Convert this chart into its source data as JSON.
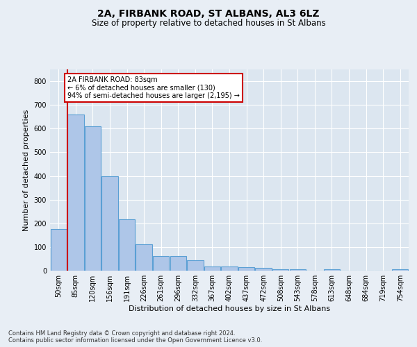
{
  "title1": "2A, FIRBANK ROAD, ST ALBANS, AL3 6LZ",
  "title2": "Size of property relative to detached houses in St Albans",
  "xlabel": "Distribution of detached houses by size in St Albans",
  "ylabel": "Number of detached properties",
  "bar_labels": [
    "50sqm",
    "85sqm",
    "120sqm",
    "156sqm",
    "191sqm",
    "226sqm",
    "261sqm",
    "296sqm",
    "332sqm",
    "367sqm",
    "402sqm",
    "437sqm",
    "472sqm",
    "508sqm",
    "543sqm",
    "578sqm",
    "613sqm",
    "648sqm",
    "684sqm",
    "719sqm",
    "754sqm"
  ],
  "bar_values": [
    175,
    660,
    610,
    400,
    218,
    110,
    63,
    63,
    44,
    17,
    17,
    15,
    13,
    7,
    7,
    0,
    7,
    0,
    0,
    0,
    7
  ],
  "bar_color": "#aec6e8",
  "bar_edge_color": "#5a9fd4",
  "annotation_box_text": "2A FIRBANK ROAD: 83sqm\n← 6% of detached houses are smaller (130)\n94% of semi-detached houses are larger (2,195) →",
  "annotation_box_color": "#ffffff",
  "annotation_box_edge_color": "#cc0000",
  "red_line_color": "#cc0000",
  "ylim": [
    0,
    850
  ],
  "yticks": [
    0,
    100,
    200,
    300,
    400,
    500,
    600,
    700,
    800
  ],
  "footer_text": "Contains HM Land Registry data © Crown copyright and database right 2024.\nContains public sector information licensed under the Open Government Licence v3.0.",
  "bg_color": "#e8eef5",
  "plot_bg_color": "#dce6f0",
  "title1_fontsize": 10,
  "title2_fontsize": 8.5,
  "ylabel_fontsize": 8,
  "xlabel_fontsize": 8,
  "tick_fontsize": 7,
  "footer_fontsize": 6,
  "annot_fontsize": 7
}
